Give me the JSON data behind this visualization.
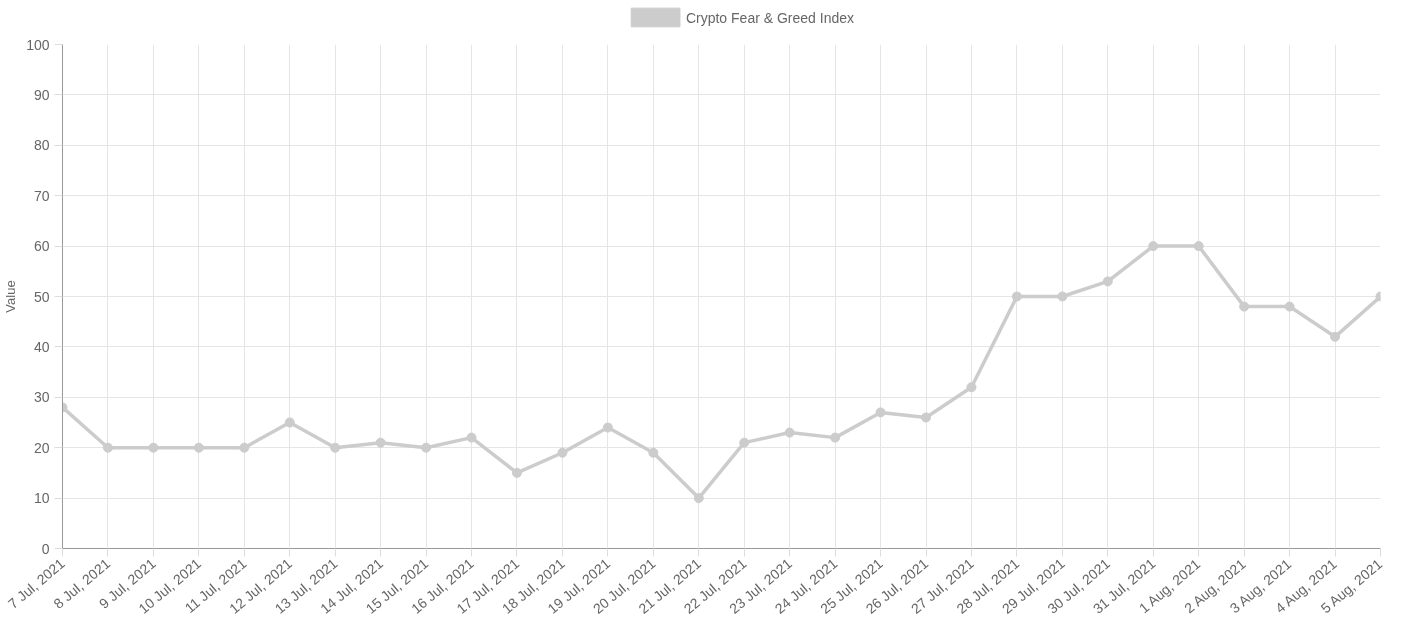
{
  "chart_data": {
    "type": "line",
    "ylabel": "Value",
    "categories": [
      "7 Jul, 2021",
      "8 Jul, 2021",
      "9 Jul, 2021",
      "10 Jul, 2021",
      "11 Jul, 2021",
      "12 Jul, 2021",
      "13 Jul, 2021",
      "14 Jul, 2021",
      "15 Jul, 2021",
      "16 Jul, 2021",
      "17 Jul, 2021",
      "18 Jul, 2021",
      "19 Jul, 2021",
      "20 Jul, 2021",
      "21 Jul, 2021",
      "22 Jul, 2021",
      "23 Jul, 2021",
      "24 Jul, 2021",
      "25 Jul, 2021",
      "26 Jul, 2021",
      "27 Jul, 2021",
      "28 Jul, 2021",
      "29 Jul, 2021",
      "30 Jul, 2021",
      "31 Jul, 2021",
      "1 Aug, 2021",
      "2 Aug, 2021",
      "3 Aug, 2021",
      "4 Aug, 2021",
      "5 Aug, 2021"
    ],
    "series": [
      {
        "name": "Crypto Fear & Greed Index",
        "color": "#cccccc",
        "values": [
          28,
          20,
          20,
          20,
          20,
          25,
          20,
          21,
          20,
          22,
          15,
          19,
          24,
          19,
          10,
          21,
          23,
          22,
          27,
          26,
          32,
          50,
          50,
          53,
          60,
          60,
          48,
          48,
          42,
          50
        ]
      }
    ],
    "ylim": [
      0,
      100
    ],
    "yticks": [
      0,
      10,
      20,
      30,
      40,
      50,
      60,
      70,
      80,
      90,
      100
    ],
    "grid": true,
    "legend": "top",
    "marker": "circle",
    "line_style": "solid"
  }
}
